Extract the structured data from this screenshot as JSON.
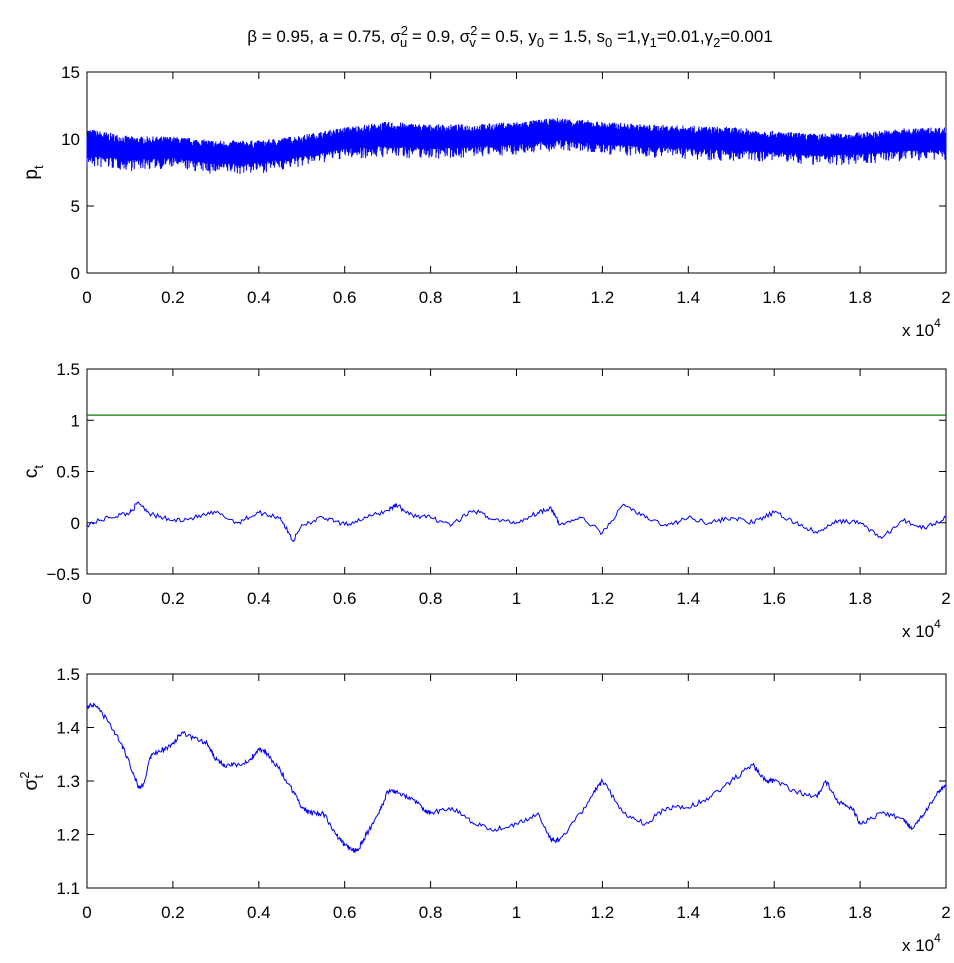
{
  "figure": {
    "title_parts": [
      {
        "t": "β = 0.95, a = 0.75, σ"
      },
      {
        "sup": "2"
      },
      {
        "sub": "u"
      },
      {
        "t": " = 0.9, σ"
      },
      {
        "sup": "2"
      },
      {
        "sub": "v"
      },
      {
        "t": " = 0.5, y"
      },
      {
        "sub": "0"
      },
      {
        "t": " = 1.5, s"
      },
      {
        "sub": "0"
      },
      {
        "t": " =1,γ"
      },
      {
        "sub": "1"
      },
      {
        "t": "=0.01,γ"
      },
      {
        "sub": "2"
      },
      {
        "t": "=0.001"
      }
    ],
    "x_exponent_label": "x 10",
    "x_exponent_power": "4",
    "colors": {
      "series": "#0000ff",
      "reference": "#007f00",
      "axes": "#000000"
    }
  },
  "chart_data": [
    {
      "type": "line",
      "ylabel_main": "p",
      "ylabel_sub": "t",
      "xlim": [
        0,
        2
      ],
      "ylim": [
        0,
        15
      ],
      "x_ticks": [
        "0",
        "0.2",
        "0.4",
        "0.6",
        "0.8",
        "1",
        "1.2",
        "1.4",
        "1.6",
        "1.8",
        "2"
      ],
      "y_ticks": [
        "0",
        "5",
        "10",
        "15"
      ],
      "series": [
        {
          "style": "band",
          "x": [
            0,
            0.1,
            0.2,
            0.3,
            0.4,
            0.5,
            0.6,
            0.7,
            0.8,
            0.9,
            1.0,
            1.1,
            1.2,
            1.3,
            1.4,
            1.5,
            1.6,
            1.7,
            1.8,
            1.9,
            2.0
          ],
          "upper": [
            10.8,
            10.2,
            10.2,
            9.9,
            9.9,
            10.3,
            10.9,
            11.3,
            11.1,
            11.1,
            11.3,
            11.6,
            11.3,
            11.1,
            11.0,
            10.9,
            10.6,
            10.4,
            10.5,
            10.8,
            10.9
          ],
          "lower": [
            7.8,
            7.6,
            7.8,
            7.3,
            7.4,
            7.9,
            8.5,
            8.6,
            8.5,
            8.6,
            8.8,
            9.1,
            8.8,
            8.6,
            8.5,
            8.3,
            8.3,
            8.0,
            8.1,
            8.3,
            8.4
          ]
        }
      ]
    },
    {
      "type": "line",
      "ylabel_main": "c",
      "ylabel_sub": "t",
      "xlim": [
        0,
        2
      ],
      "ylim": [
        -0.5,
        1.5
      ],
      "x_ticks": [
        "0",
        "0.2",
        "0.4",
        "0.6",
        "0.8",
        "1",
        "1.2",
        "1.4",
        "1.6",
        "1.8",
        "2"
      ],
      "y_ticks": [
        "−0.5",
        "0",
        "0.5",
        "1",
        "1.5"
      ],
      "y_tick_values": [
        -0.5,
        0,
        0.5,
        1,
        1.5
      ],
      "reference_line": 1.05,
      "series": [
        {
          "style": "line",
          "x": [
            0,
            0.05,
            0.1,
            0.12,
            0.15,
            0.2,
            0.25,
            0.3,
            0.35,
            0.4,
            0.45,
            0.48,
            0.5,
            0.55,
            0.6,
            0.65,
            0.7,
            0.72,
            0.75,
            0.8,
            0.85,
            0.9,
            0.95,
            1.0,
            1.05,
            1.08,
            1.1,
            1.15,
            1.2,
            1.25,
            1.3,
            1.35,
            1.4,
            1.45,
            1.5,
            1.55,
            1.6,
            1.65,
            1.7,
            1.75,
            1.8,
            1.85,
            1.9,
            1.95,
            2.0
          ],
          "y": [
            -0.02,
            0.05,
            0.1,
            0.2,
            0.08,
            0.02,
            0.05,
            0.1,
            0.0,
            0.1,
            0.05,
            -0.18,
            -0.02,
            0.05,
            -0.02,
            0.05,
            0.12,
            0.18,
            0.08,
            0.05,
            -0.02,
            0.12,
            0.03,
            0.0,
            0.1,
            0.15,
            -0.02,
            0.05,
            -0.1,
            0.18,
            0.05,
            -0.03,
            0.05,
            0.0,
            0.05,
            0.0,
            0.1,
            0.0,
            -0.1,
            0.02,
            0.0,
            -0.15,
            0.02,
            -0.05,
            0.05
          ]
        }
      ]
    },
    {
      "type": "line",
      "ylabel_main": "σ",
      "ylabel_sup": "2",
      "ylabel_sub": "t",
      "xlim": [
        0,
        2
      ],
      "ylim": [
        1.1,
        1.5
      ],
      "x_ticks": [
        "0",
        "0.2",
        "0.4",
        "0.6",
        "0.8",
        "1",
        "1.2",
        "1.4",
        "1.6",
        "1.8",
        "2"
      ],
      "y_ticks": [
        "1.1",
        "1.2",
        "1.3",
        "1.4",
        "1.5"
      ],
      "series": [
        {
          "style": "line",
          "x": [
            0,
            0.02,
            0.05,
            0.08,
            0.1,
            0.12,
            0.13,
            0.15,
            0.18,
            0.2,
            0.22,
            0.25,
            0.28,
            0.3,
            0.32,
            0.35,
            0.38,
            0.4,
            0.42,
            0.45,
            0.48,
            0.5,
            0.52,
            0.55,
            0.58,
            0.6,
            0.62,
            0.63,
            0.65,
            0.68,
            0.7,
            0.72,
            0.75,
            0.78,
            0.8,
            0.85,
            0.9,
            0.95,
            1.0,
            1.05,
            1.08,
            1.1,
            1.15,
            1.18,
            1.2,
            1.25,
            1.3,
            1.35,
            1.4,
            1.45,
            1.5,
            1.55,
            1.58,
            1.6,
            1.65,
            1.7,
            1.72,
            1.75,
            1.78,
            1.8,
            1.85,
            1.9,
            1.92,
            1.95,
            1.98,
            2.0
          ],
          "y": [
            1.44,
            1.44,
            1.41,
            1.37,
            1.33,
            1.29,
            1.29,
            1.35,
            1.36,
            1.37,
            1.39,
            1.38,
            1.37,
            1.34,
            1.33,
            1.33,
            1.34,
            1.36,
            1.35,
            1.32,
            1.28,
            1.25,
            1.24,
            1.24,
            1.2,
            1.18,
            1.17,
            1.17,
            1.2,
            1.24,
            1.28,
            1.28,
            1.27,
            1.25,
            1.24,
            1.25,
            1.22,
            1.21,
            1.22,
            1.24,
            1.19,
            1.19,
            1.24,
            1.28,
            1.3,
            1.24,
            1.22,
            1.25,
            1.25,
            1.27,
            1.3,
            1.33,
            1.3,
            1.3,
            1.28,
            1.27,
            1.3,
            1.26,
            1.25,
            1.22,
            1.24,
            1.23,
            1.21,
            1.24,
            1.28,
            1.29
          ]
        }
      ]
    }
  ]
}
